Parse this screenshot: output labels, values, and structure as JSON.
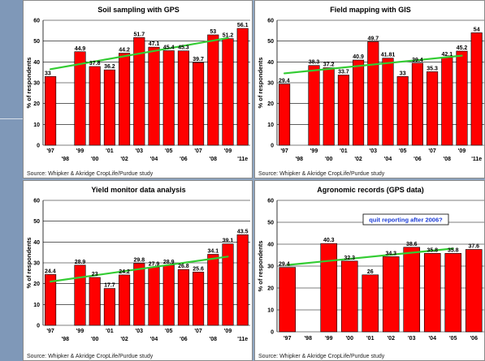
{
  "colors": {
    "bar": "#ff0000",
    "bar_edge": "#000000",
    "trend": "#33cc33",
    "note_text": "#1a3bd6"
  },
  "chart_data": [
    {
      "type": "bar",
      "title": "Soil sampling with GPS",
      "ylabel": "% of respondents",
      "source": "Source: Whipker & Akridge CropLife/Purdue study",
      "ylim": [
        0,
        60
      ],
      "yticks": [
        0,
        10,
        20,
        30,
        40,
        50,
        60
      ],
      "categories": [
        "'97",
        "'98",
        "'99",
        "'00",
        "'01",
        "'02",
        "'03",
        "'04",
        "'05",
        "'06",
        "'07",
        "'08",
        "'09",
        "'11e"
      ],
      "values": [
        33,
        null,
        44.9,
        37.8,
        36.2,
        44.2,
        51.7,
        47.1,
        45.4,
        45.3,
        39.7,
        53,
        51.2,
        56.1
      ],
      "value_labels": [
        "33",
        "",
        "44.9",
        "37.8",
        "36.2",
        "44.2",
        "51.7",
        "47.1",
        "45.4",
        "45.3",
        "39.7",
        "53",
        "51.2",
        "56.1"
      ],
      "trend": [
        36.5,
        51.5
      ],
      "grid": true
    },
    {
      "type": "bar",
      "title": "Field mapping with GIS",
      "ylabel": "% of respondents",
      "source": "Source: Whipker & Akridge CropLife/Purdue study",
      "ylim": [
        0,
        60
      ],
      "yticks": [
        0,
        10,
        20,
        30,
        40,
        50,
        60
      ],
      "categories": [
        "'97",
        "'98",
        "'99",
        "'00",
        "'01",
        "'02",
        "'03",
        "'04",
        "'05",
        "'06",
        "'07",
        "'08",
        "'09",
        "'11e"
      ],
      "values": [
        29.4,
        null,
        38.3,
        37.2,
        33.7,
        40.9,
        49.7,
        41.81,
        33,
        39.4,
        35.3,
        42.1,
        45.2,
        54
      ],
      "value_labels": [
        "29.4",
        "",
        "38.3",
        "37.2",
        "33.7",
        "40.9",
        "49.7",
        "41.81",
        "33",
        "39.4",
        "35.3",
        "42.1",
        "45.2",
        "54"
      ],
      "trend": [
        34.5,
        43
      ],
      "grid": true
    },
    {
      "type": "bar",
      "title": "Yield monitor data analysis",
      "ylabel": "% of respondents",
      "source": "Source: Whipker & Akridge CropLife/Purdue study",
      "ylim": [
        0,
        60
      ],
      "yticks": [
        0,
        10,
        20,
        30,
        40,
        50,
        60
      ],
      "categories": [
        "'97",
        "'98",
        "'99",
        "'00",
        "'01",
        "'02",
        "'03",
        "'04",
        "'05",
        "'06",
        "'07",
        "'08",
        "'09",
        "'11e"
      ],
      "values": [
        24.4,
        null,
        28.9,
        23,
        17.7,
        24.2,
        29.8,
        27.9,
        28.9,
        26.8,
        25.6,
        34.1,
        39.1,
        43.5
      ],
      "value_labels": [
        "24.4",
        "",
        "28.9",
        "23",
        "17.7",
        "24.2",
        "29.8",
        "27.9",
        "28.9",
        "26.8",
        "25.6",
        "34.1",
        "39.1",
        "43.5"
      ],
      "trend": [
        21,
        33
      ],
      "grid": true
    },
    {
      "type": "bar",
      "title": "Agronomic records (GPS data)",
      "ylabel": "% of respondents",
      "source": "Source: Whipker & Akridge CropLife/Purdue study",
      "annotation": "quit reporting after 2006?",
      "ylim": [
        0,
        60
      ],
      "yticks": [
        0,
        10,
        20,
        30,
        40,
        50,
        60
      ],
      "categories": [
        "'97",
        "'98",
        "'99",
        "'00",
        "'01",
        "'02",
        "'03",
        "'04",
        "'05",
        "'06"
      ],
      "values": [
        29.4,
        null,
        40.3,
        32.3,
        26,
        34.3,
        38.6,
        35.8,
        35.8,
        37.6
      ],
      "value_labels": [
        "29.4",
        "",
        "40.3",
        "32.3",
        "26",
        "34.3",
        "38.6",
        "35.8",
        "35.8",
        "37.6"
      ],
      "trend": [
        30.5,
        38
      ],
      "grid": true
    }
  ]
}
